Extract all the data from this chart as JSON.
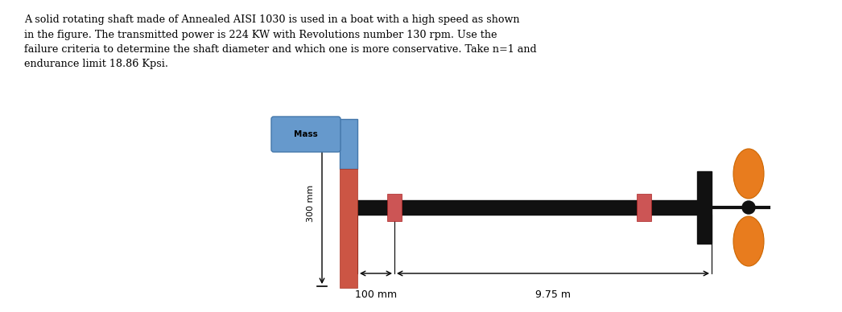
{
  "text_block": "A solid rotating shaft made of Annealed AISI 1030 is used in a boat with a high speed as shown\nin the figure. The transmitted power is 224 KW with Revolutions number 130 rpm. Use the\nfailure criteria to determine the shaft diameter and which one is more conservative. Take n=1 and\nendurance limit 18.86 Kpsi.",
  "bg_color": "#ffffff",
  "text_fontsize": 9.2,
  "mass_label": "Mass",
  "mass_color": "#6699cc",
  "prop_color": "#e87c1e",
  "shaft_color": "#111111",
  "bearing_color": "#cc5555",
  "disk_color": "#111111",
  "dim_100_label": "100 mm",
  "dim_975_label": "9.75 m",
  "dim_300_label": "300 mm"
}
